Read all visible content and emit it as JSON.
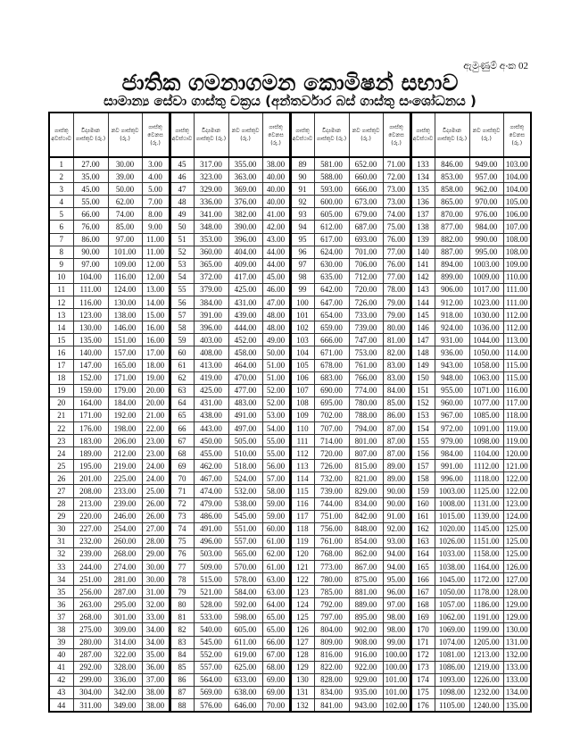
{
  "header": {
    "annex_label": "ඇමුණුම් අංක 02",
    "title": "ජාතික ගමනාගමන කොමිෂන් සභාව",
    "subtitle": "සාමාන්‍ය සේවා ගාස්තු චක්‍රය (අන්තර්වාර බස් ගාස්තු සංශෝධනය )"
  },
  "table": {
    "columns": [
      "ගාස්තු අවස්ථාව",
      "විද්‍යමාන ගාස්තුව (රු.)",
      "නව ගාස්තුව (රු.)",
      "ගාස්තු වෙනස (රු.)"
    ],
    "groups": [
      {
        "rows": [
          [
            "1",
            "27.00",
            "30.00",
            "3.00"
          ],
          [
            "2",
            "35.00",
            "39.00",
            "4.00"
          ],
          [
            "3",
            "45.00",
            "50.00",
            "5.00"
          ],
          [
            "4",
            "55.00",
            "62.00",
            "7.00"
          ],
          [
            "5",
            "66.00",
            "74.00",
            "8.00"
          ],
          [
            "6",
            "76.00",
            "85.00",
            "9.00"
          ],
          [
            "7",
            "86.00",
            "97.00",
            "11.00"
          ],
          [
            "8",
            "90.00",
            "101.00",
            "11.00"
          ],
          [
            "9",
            "97.00",
            "109.00",
            "12.00"
          ],
          [
            "10",
            "104.00",
            "116.00",
            "12.00"
          ],
          [
            "11",
            "111.00",
            "124.00",
            "13.00"
          ],
          [
            "12",
            "116.00",
            "130.00",
            "14.00"
          ],
          [
            "13",
            "123.00",
            "138.00",
            "15.00"
          ],
          [
            "14",
            "130.00",
            "146.00",
            "16.00"
          ],
          [
            "15",
            "135.00",
            "151.00",
            "16.00"
          ],
          [
            "16",
            "140.00",
            "157.00",
            "17.00"
          ],
          [
            "17",
            "147.00",
            "165.00",
            "18.00"
          ],
          [
            "18",
            "152.00",
            "171.00",
            "19.00"
          ],
          [
            "19",
            "159.00",
            "179.00",
            "20.00"
          ],
          [
            "20",
            "164.00",
            "184.00",
            "20.00"
          ],
          [
            "21",
            "171.00",
            "192.00",
            "21.00"
          ],
          [
            "22",
            "176.00",
            "198.00",
            "22.00"
          ],
          [
            "23",
            "183.00",
            "206.00",
            "23.00"
          ],
          [
            "24",
            "189.00",
            "212.00",
            "23.00"
          ],
          [
            "25",
            "195.00",
            "219.00",
            "24.00"
          ],
          [
            "26",
            "201.00",
            "225.00",
            "24.00"
          ],
          [
            "27",
            "208.00",
            "233.00",
            "25.00"
          ],
          [
            "28",
            "213.00",
            "239.00",
            "26.00"
          ],
          [
            "29",
            "220.00",
            "246.00",
            "26.00"
          ],
          [
            "30",
            "227.00",
            "254.00",
            "27.00"
          ],
          [
            "31",
            "232.00",
            "260.00",
            "28.00"
          ],
          [
            "32",
            "239.00",
            "268.00",
            "29.00"
          ],
          [
            "33",
            "244.00",
            "274.00",
            "30.00"
          ],
          [
            "34",
            "251.00",
            "281.00",
            "30.00"
          ],
          [
            "35",
            "256.00",
            "287.00",
            "31.00"
          ],
          [
            "36",
            "263.00",
            "295.00",
            "32.00"
          ],
          [
            "37",
            "268.00",
            "301.00",
            "33.00"
          ],
          [
            "38",
            "275.00",
            "309.00",
            "34.00"
          ],
          [
            "39",
            "280.00",
            "314.00",
            "34.00"
          ],
          [
            "40",
            "287.00",
            "322.00",
            "35.00"
          ],
          [
            "41",
            "292.00",
            "328.00",
            "36.00"
          ],
          [
            "42",
            "299.00",
            "336.00",
            "37.00"
          ],
          [
            "43",
            "304.00",
            "342.00",
            "38.00"
          ],
          [
            "44",
            "311.00",
            "349.00",
            "38.00"
          ]
        ]
      },
      {
        "rows": [
          [
            "45",
            "317.00",
            "355.00",
            "38.00"
          ],
          [
            "46",
            "323.00",
            "363.00",
            "40.00"
          ],
          [
            "47",
            "329.00",
            "369.00",
            "40.00"
          ],
          [
            "48",
            "336.00",
            "376.00",
            "40.00"
          ],
          [
            "49",
            "341.00",
            "382.00",
            "41.00"
          ],
          [
            "50",
            "348.00",
            "390.00",
            "42.00"
          ],
          [
            "51",
            "353.00",
            "396.00",
            "43.00"
          ],
          [
            "52",
            "360.00",
            "404.00",
            "44.00"
          ],
          [
            "53",
            "365.00",
            "409.00",
            "44.00"
          ],
          [
            "54",
            "372.00",
            "417.00",
            "45.00"
          ],
          [
            "55",
            "379.00",
            "425.00",
            "46.00"
          ],
          [
            "56",
            "384.00",
            "431.00",
            "47.00"
          ],
          [
            "57",
            "391.00",
            "439.00",
            "48.00"
          ],
          [
            "58",
            "396.00",
            "444.00",
            "48.00"
          ],
          [
            "59",
            "403.00",
            "452.00",
            "49.00"
          ],
          [
            "60",
            "408.00",
            "458.00",
            "50.00"
          ],
          [
            "61",
            "413.00",
            "464.00",
            "51.00"
          ],
          [
            "62",
            "419.00",
            "470.00",
            "51.00"
          ],
          [
            "63",
            "425.00",
            "477.00",
            "52.00"
          ],
          [
            "64",
            "431.00",
            "483.00",
            "52.00"
          ],
          [
            "65",
            "438.00",
            "491.00",
            "53.00"
          ],
          [
            "66",
            "443.00",
            "497.00",
            "54.00"
          ],
          [
            "67",
            "450.00",
            "505.00",
            "55.00"
          ],
          [
            "68",
            "455.00",
            "510.00",
            "55.00"
          ],
          [
            "69",
            "462.00",
            "518.00",
            "56.00"
          ],
          [
            "70",
            "467.00",
            "524.00",
            "57.00"
          ],
          [
            "71",
            "474.00",
            "532.00",
            "58.00"
          ],
          [
            "72",
            "479.00",
            "538.00",
            "59.00"
          ],
          [
            "73",
            "486.00",
            "545.00",
            "59.00"
          ],
          [
            "74",
            "491.00",
            "551.00",
            "60.00"
          ],
          [
            "75",
            "496.00",
            "557.00",
            "61.00"
          ],
          [
            "76",
            "503.00",
            "565.00",
            "62.00"
          ],
          [
            "77",
            "509.00",
            "570.00",
            "61.00"
          ],
          [
            "78",
            "515.00",
            "578.00",
            "63.00"
          ],
          [
            "79",
            "521.00",
            "584.00",
            "63.00"
          ],
          [
            "80",
            "528.00",
            "592.00",
            "64.00"
          ],
          [
            "81",
            "533.00",
            "598.00",
            "65.00"
          ],
          [
            "82",
            "540.00",
            "605.00",
            "65.00"
          ],
          [
            "83",
            "545.00",
            "611.00",
            "66.00"
          ],
          [
            "84",
            "552.00",
            "619.00",
            "67.00"
          ],
          [
            "85",
            "557.00",
            "625.00",
            "68.00"
          ],
          [
            "86",
            "564.00",
            "633.00",
            "69.00"
          ],
          [
            "87",
            "569.00",
            "638.00",
            "69.00"
          ],
          [
            "88",
            "576.00",
            "646.00",
            "70.00"
          ]
        ]
      },
      {
        "rows": [
          [
            "89",
            "581.00",
            "652.00",
            "71.00"
          ],
          [
            "90",
            "588.00",
            "660.00",
            "72.00"
          ],
          [
            "91",
            "593.00",
            "666.00",
            "73.00"
          ],
          [
            "92",
            "600.00",
            "673.00",
            "73.00"
          ],
          [
            "93",
            "605.00",
            "679.00",
            "74.00"
          ],
          [
            "94",
            "612.00",
            "687.00",
            "75.00"
          ],
          [
            "95",
            "617.00",
            "693.00",
            "76.00"
          ],
          [
            "96",
            "624.00",
            "701.00",
            "77.00"
          ],
          [
            "97",
            "630.00",
            "706.00",
            "76.00"
          ],
          [
            "98",
            "635.00",
            "712.00",
            "77.00"
          ],
          [
            "99",
            "642.00",
            "720.00",
            "78.00"
          ],
          [
            "100",
            "647.00",
            "726.00",
            "79.00"
          ],
          [
            "101",
            "654.00",
            "733.00",
            "79.00"
          ],
          [
            "102",
            "659.00",
            "739.00",
            "80.00"
          ],
          [
            "103",
            "666.00",
            "747.00",
            "81.00"
          ],
          [
            "104",
            "671.00",
            "753.00",
            "82.00"
          ],
          [
            "105",
            "678.00",
            "761.00",
            "83.00"
          ],
          [
            "106",
            "683.00",
            "766.00",
            "83.00"
          ],
          [
            "107",
            "690.00",
            "774.00",
            "84.00"
          ],
          [
            "108",
            "695.00",
            "780.00",
            "85.00"
          ],
          [
            "109",
            "702.00",
            "788.00",
            "86.00"
          ],
          [
            "110",
            "707.00",
            "794.00",
            "87.00"
          ],
          [
            "111",
            "714.00",
            "801.00",
            "87.00"
          ],
          [
            "112",
            "720.00",
            "807.00",
            "87.00"
          ],
          [
            "113",
            "726.00",
            "815.00",
            "89.00"
          ],
          [
            "114",
            "732.00",
            "821.00",
            "89.00"
          ],
          [
            "115",
            "739.00",
            "829.00",
            "90.00"
          ],
          [
            "116",
            "744.00",
            "834.00",
            "90.00"
          ],
          [
            "117",
            "751.00",
            "842.00",
            "91.00"
          ],
          [
            "118",
            "756.00",
            "848.00",
            "92.00"
          ],
          [
            "119",
            "761.00",
            "854.00",
            "93.00"
          ],
          [
            "120",
            "768.00",
            "862.00",
            "94.00"
          ],
          [
            "121",
            "773.00",
            "867.00",
            "94.00"
          ],
          [
            "122",
            "780.00",
            "875.00",
            "95.00"
          ],
          [
            "123",
            "785.00",
            "881.00",
            "96.00"
          ],
          [
            "124",
            "792.00",
            "889.00",
            "97.00"
          ],
          [
            "125",
            "797.00",
            "895.00",
            "98.00"
          ],
          [
            "126",
            "804.00",
            "902.00",
            "98.00"
          ],
          [
            "127",
            "809.00",
            "908.00",
            "99.00"
          ],
          [
            "128",
            "816.00",
            "916.00",
            "100.00"
          ],
          [
            "129",
            "822.00",
            "922.00",
            "100.00"
          ],
          [
            "130",
            "828.00",
            "929.00",
            "101.00"
          ],
          [
            "131",
            "834.00",
            "935.00",
            "101.00"
          ],
          [
            "132",
            "841.00",
            "943.00",
            "102.00"
          ]
        ]
      },
      {
        "rows": [
          [
            "133",
            "846.00",
            "949.00",
            "103.00"
          ],
          [
            "134",
            "853.00",
            "957.00",
            "104.00"
          ],
          [
            "135",
            "858.00",
            "962.00",
            "104.00"
          ],
          [
            "136",
            "865.00",
            "970.00",
            "105.00"
          ],
          [
            "137",
            "870.00",
            "976.00",
            "106.00"
          ],
          [
            "138",
            "877.00",
            "984.00",
            "107.00"
          ],
          [
            "139",
            "882.00",
            "990.00",
            "108.00"
          ],
          [
            "140",
            "887.00",
            "995.00",
            "108.00"
          ],
          [
            "141",
            "894.00",
            "1003.00",
            "109.00"
          ],
          [
            "142",
            "899.00",
            "1009.00",
            "110.00"
          ],
          [
            "143",
            "906.00",
            "1017.00",
            "111.00"
          ],
          [
            "144",
            "912.00",
            "1023.00",
            "111.00"
          ],
          [
            "145",
            "918.00",
            "1030.00",
            "112.00"
          ],
          [
            "146",
            "924.00",
            "1036.00",
            "112.00"
          ],
          [
            "147",
            "931.00",
            "1044.00",
            "113.00"
          ],
          [
            "148",
            "936.00",
            "1050.00",
            "114.00"
          ],
          [
            "149",
            "943.00",
            "1058.00",
            "115.00"
          ],
          [
            "150",
            "948.00",
            "1063.00",
            "115.00"
          ],
          [
            "151",
            "955.00",
            "1071.00",
            "116.00"
          ],
          [
            "152",
            "960.00",
            "1077.00",
            "117.00"
          ],
          [
            "153",
            "967.00",
            "1085.00",
            "118.00"
          ],
          [
            "154",
            "972.00",
            "1091.00",
            "119.00"
          ],
          [
            "155",
            "979.00",
            "1098.00",
            "119.00"
          ],
          [
            "156",
            "984.00",
            "1104.00",
            "120.00"
          ],
          [
            "157",
            "991.00",
            "1112.00",
            "121.00"
          ],
          [
            "158",
            "996.00",
            "1118.00",
            "122.00"
          ],
          [
            "159",
            "1003.00",
            "1125.00",
            "122.00"
          ],
          [
            "160",
            "1008.00",
            "1131.00",
            "123.00"
          ],
          [
            "161",
            "1015.00",
            "1139.00",
            "124.00"
          ],
          [
            "162",
            "1020.00",
            "1145.00",
            "125.00"
          ],
          [
            "163",
            "1026.00",
            "1151.00",
            "125.00"
          ],
          [
            "164",
            "1033.00",
            "1158.00",
            "125.00"
          ],
          [
            "165",
            "1038.00",
            "1164.00",
            "126.00"
          ],
          [
            "166",
            "1045.00",
            "1172.00",
            "127.00"
          ],
          [
            "167",
            "1050.00",
            "1178.00",
            "128.00"
          ],
          [
            "168",
            "1057.00",
            "1186.00",
            "129.00"
          ],
          [
            "169",
            "1062.00",
            "1191.00",
            "129.00"
          ],
          [
            "170",
            "1069.00",
            "1199.00",
            "130.00"
          ],
          [
            "171",
            "1074.00",
            "1205.00",
            "131.00"
          ],
          [
            "172",
            "1081.00",
            "1213.00",
            "132.00"
          ],
          [
            "173",
            "1086.00",
            "1219.00",
            "133.00"
          ],
          [
            "174",
            "1093.00",
            "1226.00",
            "133.00"
          ],
          [
            "175",
            "1098.00",
            "1232.00",
            "134.00"
          ],
          [
            "176",
            "1105.00",
            "1240.00",
            "135.00"
          ]
        ]
      }
    ]
  }
}
